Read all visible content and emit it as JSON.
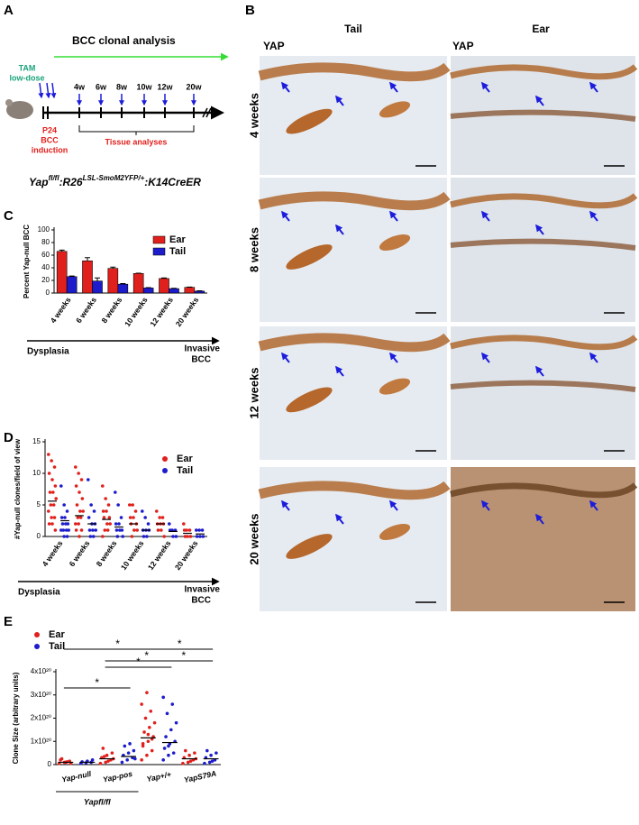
{
  "panel_labels": [
    "A",
    "B",
    "C",
    "D",
    "E"
  ],
  "panel_a": {
    "title": "BCC clonal analysis",
    "tam": [
      "TAM",
      "low-dose"
    ],
    "weeks": [
      "4w",
      "6w",
      "8w",
      "10w",
      "12w",
      "20w"
    ],
    "induction": [
      "P24",
      "BCC",
      "induction"
    ],
    "analyses": "Tissue analyses",
    "genotype": [
      "Yap",
      "fl/fl",
      ":R26",
      "LSL-SmoM2YFP/+",
      ":K14CreER"
    ]
  },
  "panel_b": {
    "columns": [
      "Tail",
      "Ear"
    ],
    "marker": "YAP",
    "rows": [
      "4 weeks",
      "8 weeks",
      "12 weeks",
      "20 weeks"
    ]
  },
  "chart_data": [
    {
      "type": "bar",
      "ylabel": "Percent Yap-null BCC",
      "categories": [
        "4 weeks",
        "6 weeks",
        "8 weeks",
        "10 weeks",
        "12 weeks",
        "20 weeks"
      ],
      "series": [
        {
          "name": "Ear",
          "color": "#e0201c",
          "values": [
            66,
            51,
            39,
            31,
            23,
            9
          ],
          "errors": [
            2,
            5,
            2,
            0.5,
            1,
            0.5
          ]
        },
        {
          "name": "Tail",
          "color": "#1c1ccc",
          "values": [
            26,
            19,
            14,
            8,
            7,
            3
          ],
          "errors": [
            1,
            5,
            1,
            0.5,
            0.5,
            0.5
          ]
        }
      ],
      "ylim": [
        0,
        100
      ],
      "yticks": [
        0,
        20,
        40,
        60,
        80,
        100
      ],
      "arrow_start": "Dysplasia",
      "arrow_end": [
        "Invasive",
        "BCC"
      ]
    },
    {
      "type": "strip",
      "ylabel": "#Yap-null clones/field of view",
      "categories": [
        "4 weeks",
        "6 weeks",
        "8 weeks",
        "10 weeks",
        "12 weeks",
        "20 weeks"
      ],
      "series": [
        {
          "name": "Ear",
          "color": "#e0201c",
          "values": [
            [
              13,
              12,
              11,
              10,
              9,
              8,
              7,
              7,
              6,
              5,
              5,
              4,
              3,
              3,
              2,
              2,
              1
            ],
            [
              11,
              10,
              9,
              8,
              7,
              6,
              5,
              4,
              4,
              3,
              3,
              2,
              2,
              1,
              1,
              0
            ],
            [
              8,
              6,
              5,
              4,
              4,
              3,
              3,
              2,
              2,
              1,
              1,
              0
            ],
            [
              5,
              5,
              4,
              3,
              3,
              2,
              2,
              1,
              1,
              0
            ],
            [
              4,
              3,
              3,
              2,
              2,
              2,
              1,
              1,
              0
            ],
            [
              2,
              1,
              1,
              1,
              0,
              0,
              0
            ]
          ],
          "means": [
            5.6,
            3.3,
            2.7,
            2,
            2,
            0.5
          ]
        },
        {
          "name": "Tail",
          "color": "#1c1ccc",
          "values": [
            [
              8,
              5,
              4,
              3,
              3,
              2,
              2,
              2,
              1,
              1,
              1,
              1,
              0,
              0
            ],
            [
              9,
              5,
              4,
              3,
              2,
              2,
              1,
              1,
              1,
              0,
              0
            ],
            [
              7,
              5,
              3,
              2,
              2,
              1,
              1,
              1,
              0,
              0
            ],
            [
              4,
              3,
              2,
              1,
              1,
              1,
              0,
              0
            ],
            [
              2,
              1,
              1,
              1,
              0,
              0
            ],
            [
              1,
              1,
              1,
              0,
              0,
              0
            ]
          ],
          "means": [
            2.5,
            2,
            1.5,
            1,
            0.8,
            0.4
          ]
        }
      ],
      "ylim": [
        0,
        15
      ],
      "yticks": [
        0,
        5,
        10,
        15
      ],
      "arrow_start": "Dysplasia",
      "arrow_end": [
        "Invasive",
        "BCC"
      ]
    },
    {
      "type": "strip",
      "ylabel": "Clone Size (arbitrary units)",
      "categories": [
        "Yap-null",
        "Yap-pos",
        "Yap+/+",
        "YapS79A"
      ],
      "group_label": "Yapfl/fl",
      "series": [
        {
          "name": "Ear",
          "color": "#e0201c",
          "values": [
            [
              5e+18,
              1e+19,
              1.5e+19,
              2e+19,
              1e+19,
              5e+18,
              2.5e+19,
              1.2e+19
            ],
            [
              5e+18,
              1e+19,
              2e+19,
              3e+19,
              4e+19,
              5e+19,
              7e+19,
              1.5e+19,
              2.5e+19,
              3.5e+19
            ],
            [
              2e+19,
              4e+19,
              6e+19,
              8e+19,
              1e+20,
              1.2e+20,
              1.4e+20,
              1.6e+20,
              1.8e+20,
              2e+20,
              2.3e+20,
              2.6e+20,
              3.1e+20,
              1.1e+20,
              9e+19,
              1.3e+20
            ],
            [
              5e+18,
              1e+19,
              2e+19,
              3e+19,
              4e+19,
              5e+19,
              6e+19,
              1.5e+19,
              2.5e+19
            ]
          ],
          "means": [
            1e+19,
            2.5e+19,
            1.15e+20,
            2.5e+19
          ]
        },
        {
          "name": "Tail",
          "color": "#1c1ccc",
          "values": [
            [
              5e+18,
              8e+18,
              1e+19,
              1.2e+19,
              1.5e+19,
              2e+19
            ],
            [
              1e+19,
              2e+19,
              3e+19,
              4e+19,
              5e+19,
              6e+19,
              8e+19,
              9e+19,
              2.5e+19
            ],
            [
              2e+19,
              4e+19,
              5e+19,
              7e+19,
              9e+19,
              1e+20,
              1.2e+20,
              1.5e+20,
              1.8e+20,
              2.2e+20,
              2.6e+20,
              2.9e+20,
              8e+19
            ],
            [
              5e+18,
              1e+19,
              2e+19,
              3e+19,
              4e+19,
              5e+19,
              6e+19,
              1.5e+19
            ]
          ],
          "means": [
            1e+19,
            3.5e+19,
            9.5e+19,
            2.5e+19
          ]
        }
      ],
      "ylim": [
        0,
        4e+20
      ],
      "yticks": [
        0,
        {
          "value": 1e+20,
          "label": "1x10²⁰"
        },
        {
          "value": 2e+20,
          "label": "2x10²⁰"
        },
        {
          "value": 3e+20,
          "label": "3x10²⁰"
        },
        {
          "value": 4e+20,
          "label": "4x10²⁰"
        }
      ],
      "significance": [
        "*",
        "*",
        "*",
        "*",
        "*",
        "*"
      ]
    }
  ]
}
